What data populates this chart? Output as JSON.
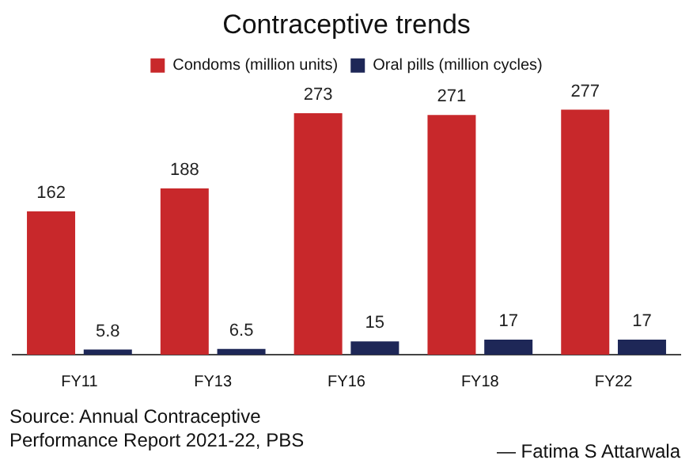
{
  "chart_data": {
    "type": "bar",
    "title": "Contraceptive trends",
    "categories": [
      "FY11",
      "FY13",
      "FY16",
      "FY18",
      "FY22"
    ],
    "series": [
      {
        "name": "Condoms (million units)",
        "color": "#c8282b",
        "values": [
          162,
          188,
          273,
          271,
          277
        ]
      },
      {
        "name": "Oral pills (million cycles)",
        "color": "#1e2757",
        "values": [
          5.8,
          6.5,
          15,
          17,
          17
        ]
      }
    ],
    "data_labels": true,
    "legend": "top",
    "grid": false,
    "annotations": [
      "Source: Annual Contraceptive Performance Report 2021-22, PBS",
      "— Fatima S Attarwala"
    ]
  }
}
